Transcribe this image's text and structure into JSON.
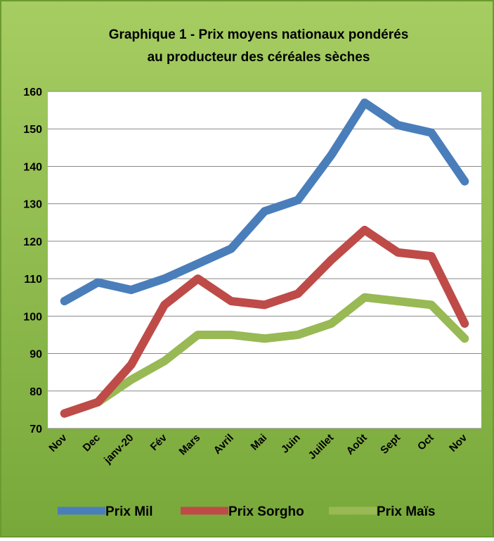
{
  "chart_data": {
    "type": "line",
    "title": [
      "Graphique 1 - Prix moyens nationaux pondérés",
      "au producteur des céréales sèches"
    ],
    "categories": [
      "Nov",
      "Dec",
      "janv-20",
      "Fév",
      "Mars",
      "Avril",
      "Mai",
      "Juin",
      "Juillet",
      "Août",
      "Sept",
      "Oct",
      "Nov"
    ],
    "series": [
      {
        "name": "Prix Mil",
        "color": "#4a7ebb",
        "values": [
          104,
          109,
          107,
          110,
          114,
          118,
          128,
          131,
          143,
          157,
          151,
          149,
          136
        ]
      },
      {
        "name": "Prix Sorgho",
        "color": "#be4b48",
        "values": [
          74,
          77,
          87,
          103,
          110,
          104,
          103,
          106,
          115,
          123,
          117,
          116,
          98
        ]
      },
      {
        "name": "Prix Maïs",
        "color": "#98b954",
        "values": [
          74,
          77,
          83,
          88,
          95,
          95,
          94,
          95,
          98,
          105,
          104,
          103,
          94
        ]
      }
    ],
    "ylim": [
      70,
      160
    ],
    "yticks": [
      70,
      80,
      90,
      100,
      110,
      120,
      130,
      140,
      150,
      160
    ],
    "grid": true,
    "legend": "bottom"
  }
}
